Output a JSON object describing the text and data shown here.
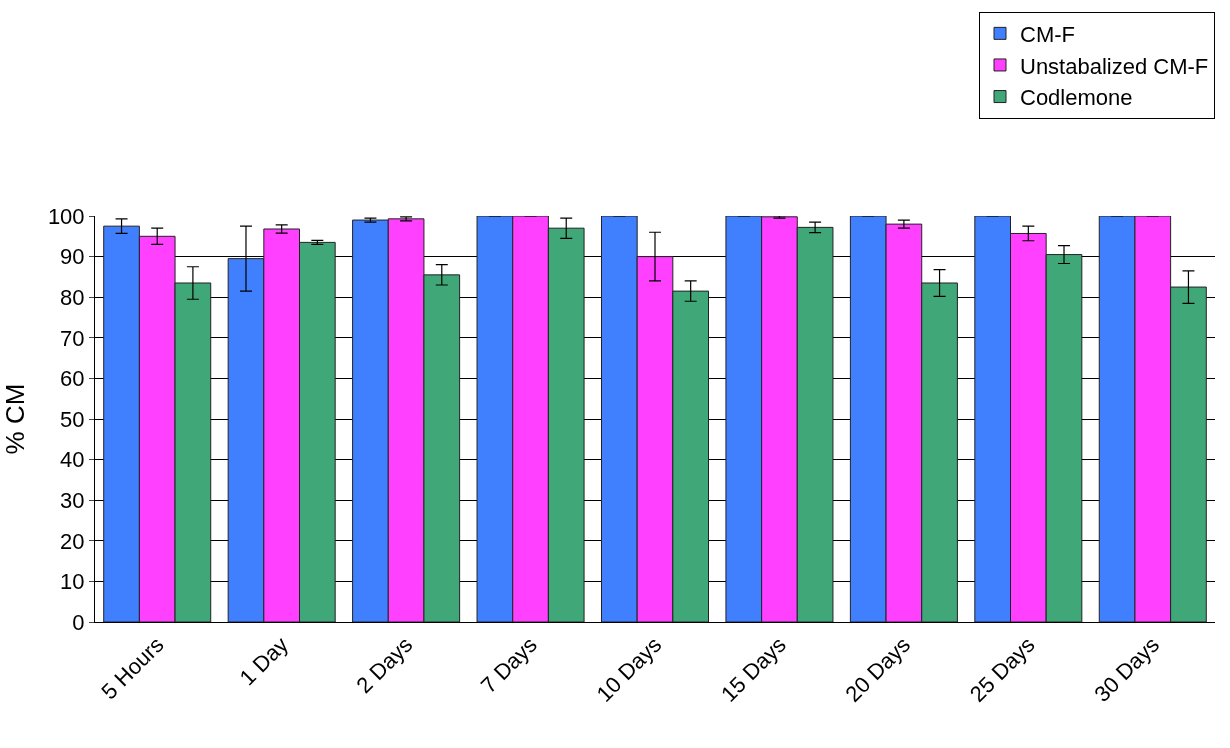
{
  "chart_data": {
    "type": "bar",
    "ylabel": "% CM",
    "categories": [
      "5 Hours",
      "1 Day",
      "2 Days",
      "7 Days",
      "10 Days",
      "15 Days",
      "20 Days",
      "25 Days",
      "30 Days"
    ],
    "series": [
      {
        "name": "CM-F",
        "color": "#4080ff",
        "values": [
          97.5,
          89.5,
          99,
          100,
          100,
          100,
          100,
          100,
          100
        ],
        "errors": [
          1.8,
          8,
          0.5,
          null,
          null,
          null,
          null,
          null,
          null
        ]
      },
      {
        "name": "Unstabalized CM-F",
        "color": "#ff40ff",
        "values": [
          95,
          96.8,
          99.3,
          100,
          90,
          99.8,
          98,
          95.7,
          100
        ],
        "errors": [
          2,
          1,
          0.5,
          null,
          6,
          0.3,
          1,
          1.8,
          null
        ]
      },
      {
        "name": "Codlemone",
        "color": "#40a878",
        "values": [
          83.5,
          93.5,
          85.5,
          97,
          81.5,
          97.2,
          83.5,
          90.5,
          82.5
        ],
        "errors": [
          4,
          0.5,
          2.5,
          2.5,
          2.5,
          1.3,
          3.3,
          2.2,
          4
        ]
      }
    ],
    "ylim": [
      0,
      100
    ],
    "yticks": [
      0,
      10,
      20,
      30,
      40,
      50,
      60,
      70,
      80,
      90,
      100
    ],
    "grid": "y",
    "legend": "top right"
  }
}
